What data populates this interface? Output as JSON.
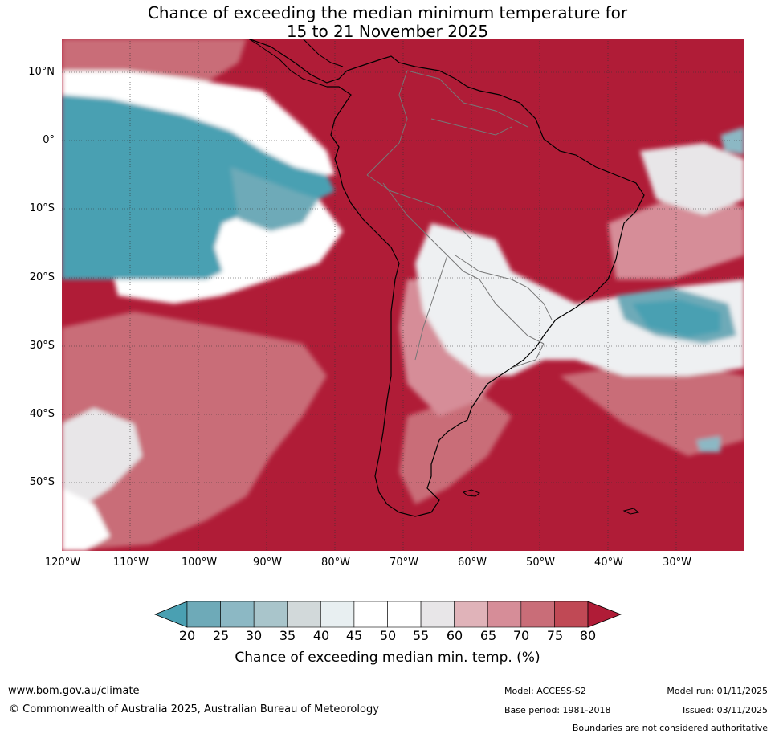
{
  "title": {
    "line1": "Chance of exceeding the median minimum temperature for",
    "line2": "15 to 21 November 2025"
  },
  "axes": {
    "lat_labels": [
      "10°N",
      "0°",
      "10°S",
      "20°S",
      "30°S",
      "40°S",
      "50°S"
    ],
    "lon_labels": [
      "120°W",
      "110°W",
      "100°W",
      "90°W",
      "80°W",
      "70°W",
      "60°W",
      "50°W",
      "40°W",
      "30°W"
    ]
  },
  "colorbar": {
    "title": "Chance of exceeding median min. temp. (%)",
    "ticks": [
      "20",
      "25",
      "30",
      "35",
      "40",
      "45",
      "50",
      "55",
      "60",
      "65",
      "70",
      "75",
      "80"
    ],
    "colors": [
      "#4aa0b2",
      "#6eaab8",
      "#8cb8c4",
      "#a9c5cb",
      "#d2d9da",
      "#e8eff1",
      "#ffffff",
      "#ffffff",
      "#e8e6e8",
      "#e0b3b9",
      "#d68d98",
      "#c96d78",
      "#c04955",
      "#b01c37"
    ],
    "low_color": "#4aa0b2",
    "high_color": "#b01c37"
  },
  "colors": {
    "ocean_high": "#b01c37",
    "medium_high": "#c96d78",
    "mid": "#e0b3b9",
    "neutral": "#ffffff",
    "low": "#4aa0b2",
    "low_mid": "#8cb8c4"
  },
  "footer": {
    "website": "www.bom.gov.au/climate",
    "copyright": "© Commonwealth of Australia 2025, Australian Bureau of Meteorology",
    "model": "Model: ACCESS-S2",
    "base_period": "Base period: 1981-2018",
    "model_run": "Model run: 01/11/2025",
    "issued": "Issued: 03/11/2025",
    "disclaimer": "Boundaries are not considered authoritative"
  }
}
